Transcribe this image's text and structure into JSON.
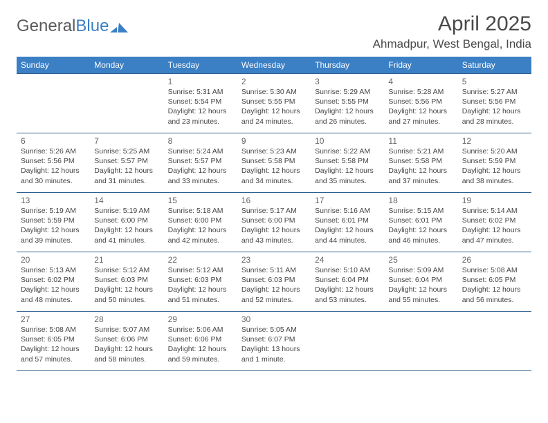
{
  "brand": {
    "part1": "General",
    "part2": "Blue"
  },
  "title": "April 2025",
  "location": "Ahmadpur, West Bengal, India",
  "colors": {
    "header_bg": "#3b7fc4",
    "header_text": "#ffffff",
    "border": "#2f5f8f",
    "page_bg": "#ffffff",
    "text": "#444444",
    "title_text": "#4a4a4a"
  },
  "weekdays": [
    "Sunday",
    "Monday",
    "Tuesday",
    "Wednesday",
    "Thursday",
    "Friday",
    "Saturday"
  ],
  "weeks": [
    [
      null,
      null,
      {
        "num": "1",
        "sunrise": "Sunrise: 5:31 AM",
        "sunset": "Sunset: 5:54 PM",
        "day1": "Daylight: 12 hours",
        "day2": "and 23 minutes."
      },
      {
        "num": "2",
        "sunrise": "Sunrise: 5:30 AM",
        "sunset": "Sunset: 5:55 PM",
        "day1": "Daylight: 12 hours",
        "day2": "and 24 minutes."
      },
      {
        "num": "3",
        "sunrise": "Sunrise: 5:29 AM",
        "sunset": "Sunset: 5:55 PM",
        "day1": "Daylight: 12 hours",
        "day2": "and 26 minutes."
      },
      {
        "num": "4",
        "sunrise": "Sunrise: 5:28 AM",
        "sunset": "Sunset: 5:56 PM",
        "day1": "Daylight: 12 hours",
        "day2": "and 27 minutes."
      },
      {
        "num": "5",
        "sunrise": "Sunrise: 5:27 AM",
        "sunset": "Sunset: 5:56 PM",
        "day1": "Daylight: 12 hours",
        "day2": "and 28 minutes."
      }
    ],
    [
      {
        "num": "6",
        "sunrise": "Sunrise: 5:26 AM",
        "sunset": "Sunset: 5:56 PM",
        "day1": "Daylight: 12 hours",
        "day2": "and 30 minutes."
      },
      {
        "num": "7",
        "sunrise": "Sunrise: 5:25 AM",
        "sunset": "Sunset: 5:57 PM",
        "day1": "Daylight: 12 hours",
        "day2": "and 31 minutes."
      },
      {
        "num": "8",
        "sunrise": "Sunrise: 5:24 AM",
        "sunset": "Sunset: 5:57 PM",
        "day1": "Daylight: 12 hours",
        "day2": "and 33 minutes."
      },
      {
        "num": "9",
        "sunrise": "Sunrise: 5:23 AM",
        "sunset": "Sunset: 5:58 PM",
        "day1": "Daylight: 12 hours",
        "day2": "and 34 minutes."
      },
      {
        "num": "10",
        "sunrise": "Sunrise: 5:22 AM",
        "sunset": "Sunset: 5:58 PM",
        "day1": "Daylight: 12 hours",
        "day2": "and 35 minutes."
      },
      {
        "num": "11",
        "sunrise": "Sunrise: 5:21 AM",
        "sunset": "Sunset: 5:58 PM",
        "day1": "Daylight: 12 hours",
        "day2": "and 37 minutes."
      },
      {
        "num": "12",
        "sunrise": "Sunrise: 5:20 AM",
        "sunset": "Sunset: 5:59 PM",
        "day1": "Daylight: 12 hours",
        "day2": "and 38 minutes."
      }
    ],
    [
      {
        "num": "13",
        "sunrise": "Sunrise: 5:19 AM",
        "sunset": "Sunset: 5:59 PM",
        "day1": "Daylight: 12 hours",
        "day2": "and 39 minutes."
      },
      {
        "num": "14",
        "sunrise": "Sunrise: 5:19 AM",
        "sunset": "Sunset: 6:00 PM",
        "day1": "Daylight: 12 hours",
        "day2": "and 41 minutes."
      },
      {
        "num": "15",
        "sunrise": "Sunrise: 5:18 AM",
        "sunset": "Sunset: 6:00 PM",
        "day1": "Daylight: 12 hours",
        "day2": "and 42 minutes."
      },
      {
        "num": "16",
        "sunrise": "Sunrise: 5:17 AM",
        "sunset": "Sunset: 6:00 PM",
        "day1": "Daylight: 12 hours",
        "day2": "and 43 minutes."
      },
      {
        "num": "17",
        "sunrise": "Sunrise: 5:16 AM",
        "sunset": "Sunset: 6:01 PM",
        "day1": "Daylight: 12 hours",
        "day2": "and 44 minutes."
      },
      {
        "num": "18",
        "sunrise": "Sunrise: 5:15 AM",
        "sunset": "Sunset: 6:01 PM",
        "day1": "Daylight: 12 hours",
        "day2": "and 46 minutes."
      },
      {
        "num": "19",
        "sunrise": "Sunrise: 5:14 AM",
        "sunset": "Sunset: 6:02 PM",
        "day1": "Daylight: 12 hours",
        "day2": "and 47 minutes."
      }
    ],
    [
      {
        "num": "20",
        "sunrise": "Sunrise: 5:13 AM",
        "sunset": "Sunset: 6:02 PM",
        "day1": "Daylight: 12 hours",
        "day2": "and 48 minutes."
      },
      {
        "num": "21",
        "sunrise": "Sunrise: 5:12 AM",
        "sunset": "Sunset: 6:03 PM",
        "day1": "Daylight: 12 hours",
        "day2": "and 50 minutes."
      },
      {
        "num": "22",
        "sunrise": "Sunrise: 5:12 AM",
        "sunset": "Sunset: 6:03 PM",
        "day1": "Daylight: 12 hours",
        "day2": "and 51 minutes."
      },
      {
        "num": "23",
        "sunrise": "Sunrise: 5:11 AM",
        "sunset": "Sunset: 6:03 PM",
        "day1": "Daylight: 12 hours",
        "day2": "and 52 minutes."
      },
      {
        "num": "24",
        "sunrise": "Sunrise: 5:10 AM",
        "sunset": "Sunset: 6:04 PM",
        "day1": "Daylight: 12 hours",
        "day2": "and 53 minutes."
      },
      {
        "num": "25",
        "sunrise": "Sunrise: 5:09 AM",
        "sunset": "Sunset: 6:04 PM",
        "day1": "Daylight: 12 hours",
        "day2": "and 55 minutes."
      },
      {
        "num": "26",
        "sunrise": "Sunrise: 5:08 AM",
        "sunset": "Sunset: 6:05 PM",
        "day1": "Daylight: 12 hours",
        "day2": "and 56 minutes."
      }
    ],
    [
      {
        "num": "27",
        "sunrise": "Sunrise: 5:08 AM",
        "sunset": "Sunset: 6:05 PM",
        "day1": "Daylight: 12 hours",
        "day2": "and 57 minutes."
      },
      {
        "num": "28",
        "sunrise": "Sunrise: 5:07 AM",
        "sunset": "Sunset: 6:06 PM",
        "day1": "Daylight: 12 hours",
        "day2": "and 58 minutes."
      },
      {
        "num": "29",
        "sunrise": "Sunrise: 5:06 AM",
        "sunset": "Sunset: 6:06 PM",
        "day1": "Daylight: 12 hours",
        "day2": "and 59 minutes."
      },
      {
        "num": "30",
        "sunrise": "Sunrise: 5:05 AM",
        "sunset": "Sunset: 6:07 PM",
        "day1": "Daylight: 13 hours",
        "day2": "and 1 minute."
      },
      null,
      null,
      null
    ]
  ]
}
